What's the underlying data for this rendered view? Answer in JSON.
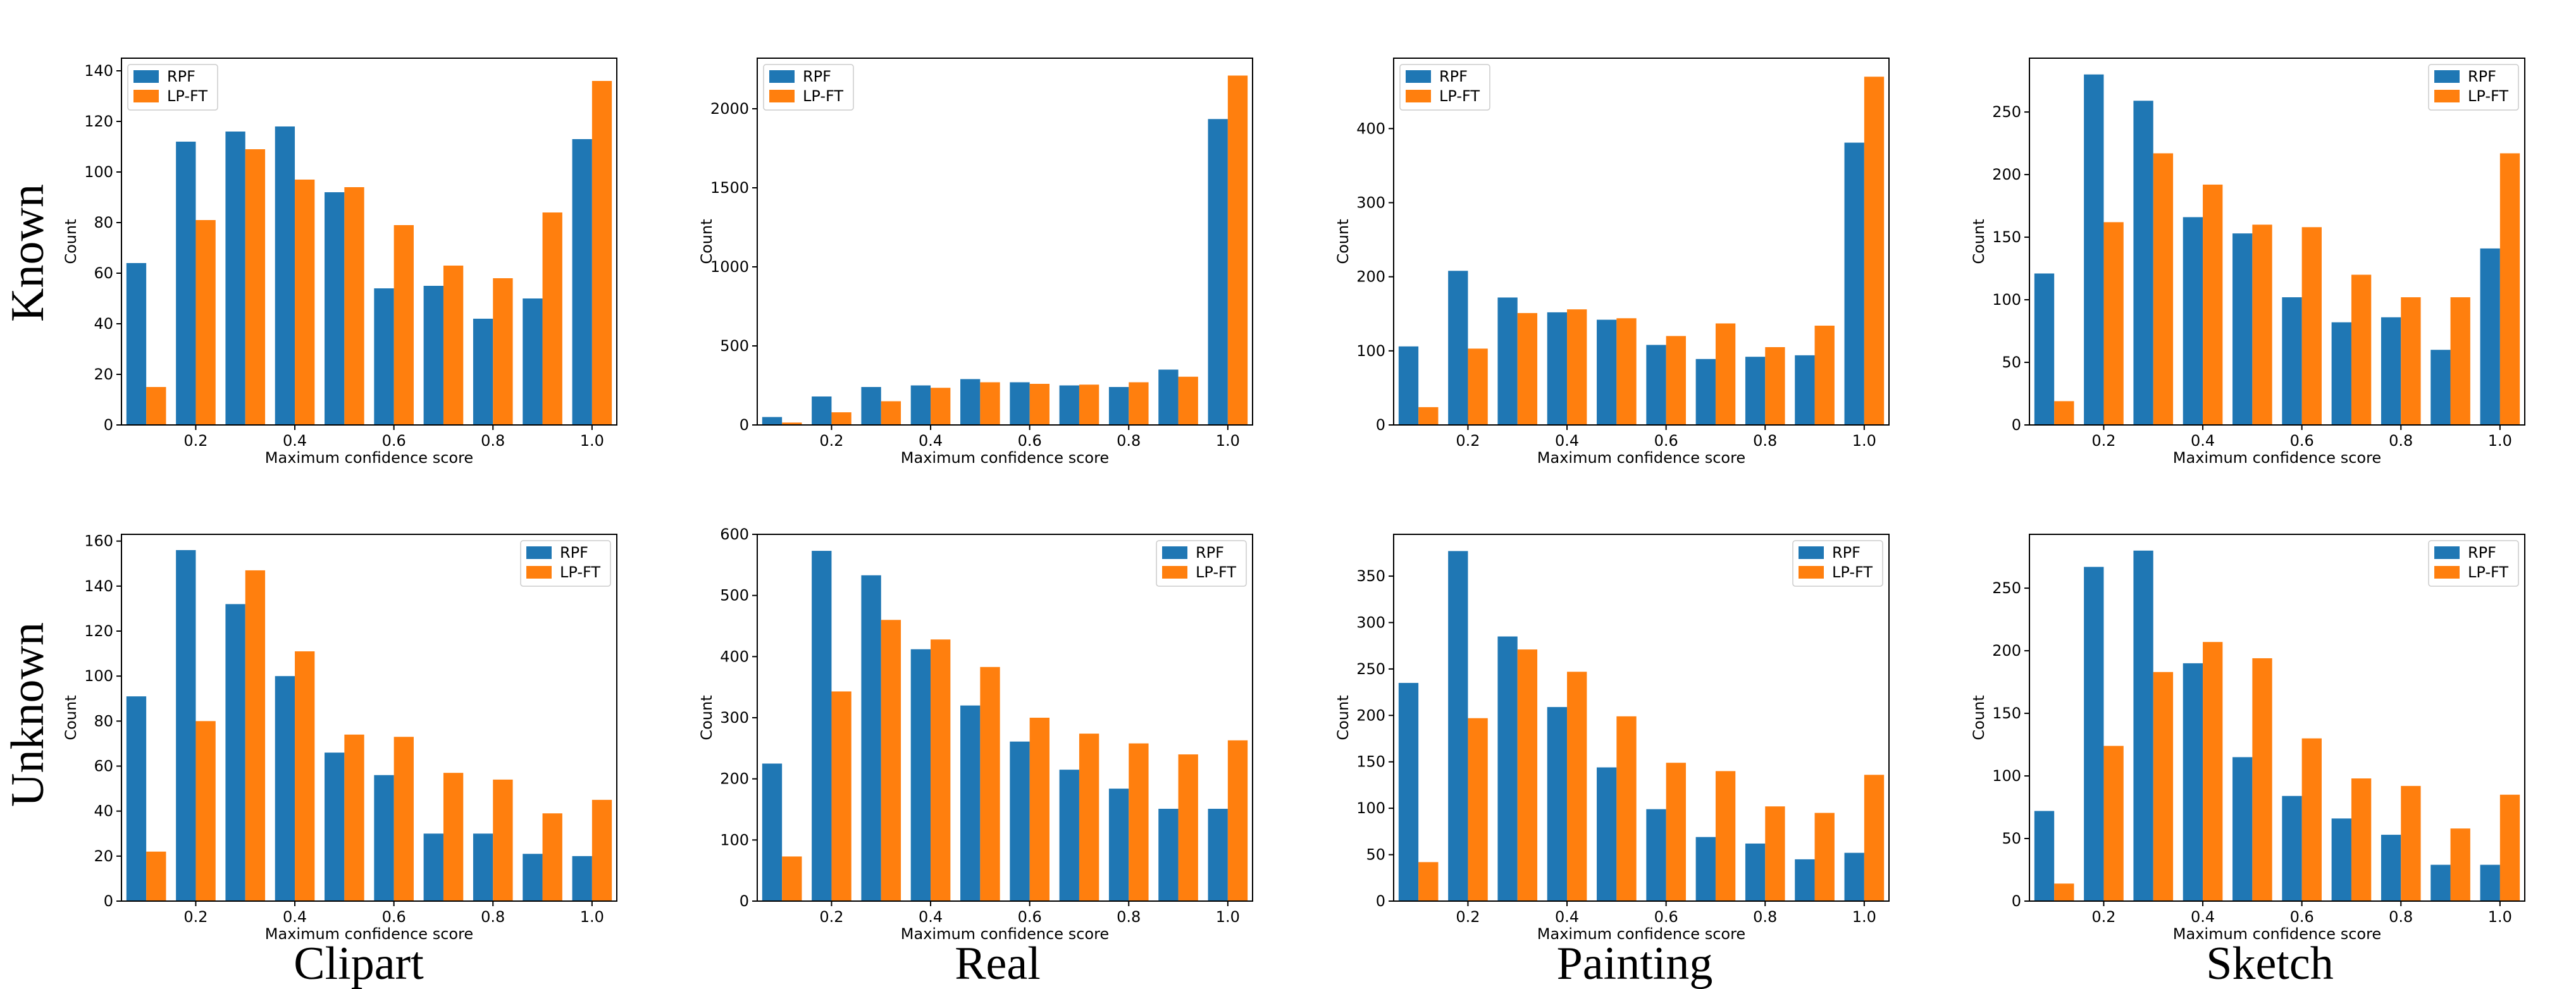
{
  "colors": {
    "RPF": "#1f77b4",
    "LP-FT": "#ff7f0e"
  },
  "row_labels": [
    "Known",
    "Unknown"
  ],
  "column_labels": [
    "Clipart",
    "Real",
    "Painting",
    "Sketch"
  ],
  "chart_data": [
    {
      "type": "bar",
      "panel": "Known / Clipart",
      "x": [
        0.1,
        0.2,
        0.3,
        0.4,
        0.5,
        0.6,
        0.7,
        0.8,
        0.9,
        1.0
      ],
      "series": [
        {
          "name": "RPF",
          "values": [
            64,
            112,
            116,
            118,
            92,
            54,
            55,
            42,
            50,
            113
          ]
        },
        {
          "name": "LP-FT",
          "values": [
            15,
            81,
            109,
            97,
            94,
            79,
            63,
            58,
            84,
            136
          ]
        }
      ],
      "xlabel": "Maximum confidence score",
      "ylabel": "Count",
      "xlim": [
        0.05,
        1.05
      ],
      "ylim": [
        0,
        145
      ],
      "xticks": [
        "0.2",
        "0.4",
        "0.6",
        "0.8",
        "1.0"
      ],
      "yticks": [
        "0",
        "20",
        "40",
        "60",
        "80",
        "100",
        "120",
        "140"
      ],
      "legend": "upper-left"
    },
    {
      "type": "bar",
      "panel": "Known / Real",
      "x": [
        0.1,
        0.2,
        0.3,
        0.4,
        0.5,
        0.6,
        0.7,
        0.8,
        0.9,
        1.0
      ],
      "series": [
        {
          "name": "RPF",
          "values": [
            50,
            180,
            240,
            250,
            290,
            270,
            250,
            240,
            350,
            1935
          ]
        },
        {
          "name": "LP-FT",
          "values": [
            15,
            80,
            150,
            235,
            270,
            260,
            255,
            270,
            305,
            2210
          ]
        }
      ],
      "xlabel": "Maximum confidence score",
      "ylabel": "Count",
      "xlim": [
        0.05,
        1.05
      ],
      "ylim": [
        0,
        2320
      ],
      "xticks": [
        "0.2",
        "0.4",
        "0.6",
        "0.8",
        "1.0"
      ],
      "yticks": [
        "0",
        "500",
        "1000",
        "1500",
        "2000"
      ],
      "legend": "upper-left"
    },
    {
      "type": "bar",
      "panel": "Known / Painting",
      "x": [
        0.1,
        0.2,
        0.3,
        0.4,
        0.5,
        0.6,
        0.7,
        0.8,
        0.9,
        1.0
      ],
      "series": [
        {
          "name": "RPF",
          "values": [
            106,
            208,
            172,
            152,
            142,
            108,
            89,
            92,
            94,
            381
          ]
        },
        {
          "name": "LP-FT",
          "values": [
            24,
            103,
            151,
            156,
            144,
            120,
            137,
            105,
            134,
            470
          ]
        }
      ],
      "xlabel": "Maximum confidence score",
      "ylabel": "Count",
      "xlim": [
        0.05,
        1.05
      ],
      "ylim": [
        0,
        495
      ],
      "xticks": [
        "0.2",
        "0.4",
        "0.6",
        "0.8",
        "1.0"
      ],
      "yticks": [
        "0",
        "100",
        "200",
        "300",
        "400"
      ],
      "legend": "upper-left"
    },
    {
      "type": "bar",
      "panel": "Known / Sketch",
      "x": [
        0.1,
        0.2,
        0.3,
        0.4,
        0.5,
        0.6,
        0.7,
        0.8,
        0.9,
        1.0
      ],
      "series": [
        {
          "name": "RPF",
          "values": [
            121,
            280,
            259,
            166,
            153,
            102,
            82,
            86,
            60,
            141
          ]
        },
        {
          "name": "LP-FT",
          "values": [
            19,
            162,
            217,
            192,
            160,
            158,
            120,
            102,
            102,
            217
          ]
        }
      ],
      "xlabel": "Maximum confidence score",
      "ylabel": "Count",
      "xlim": [
        0.05,
        1.05
      ],
      "ylim": [
        0,
        293
      ],
      "xticks": [
        "0.2",
        "0.4",
        "0.6",
        "0.8",
        "1.0"
      ],
      "yticks": [
        "0",
        "50",
        "100",
        "150",
        "200",
        "250"
      ],
      "legend": "upper-right"
    },
    {
      "type": "bar",
      "panel": "Unknown / Clipart",
      "x": [
        0.1,
        0.2,
        0.3,
        0.4,
        0.5,
        0.6,
        0.7,
        0.8,
        0.9,
        1.0
      ],
      "series": [
        {
          "name": "RPF",
          "values": [
            91,
            156,
            132,
            100,
            66,
            56,
            30,
            30,
            21,
            20
          ]
        },
        {
          "name": "LP-FT",
          "values": [
            22,
            80,
            147,
            111,
            74,
            73,
            57,
            54,
            39,
            45
          ]
        }
      ],
      "xlabel": "Maximum confidence score",
      "ylabel": "Count",
      "xlim": [
        0.05,
        1.05
      ],
      "ylim": [
        0,
        163
      ],
      "xticks": [
        "0.2",
        "0.4",
        "0.6",
        "0.8",
        "1.0"
      ],
      "yticks": [
        "0",
        "20",
        "40",
        "60",
        "80",
        "100",
        "120",
        "140",
        "160"
      ],
      "legend": "upper-right"
    },
    {
      "type": "bar",
      "panel": "Unknown / Real",
      "x": [
        0.1,
        0.2,
        0.3,
        0.4,
        0.5,
        0.6,
        0.7,
        0.8,
        0.9,
        1.0
      ],
      "series": [
        {
          "name": "RPF",
          "values": [
            225,
            573,
            533,
            412,
            320,
            261,
            215,
            184,
            151,
            151
          ]
        },
        {
          "name": "LP-FT",
          "values": [
            73,
            343,
            460,
            428,
            383,
            300,
            274,
            258,
            240,
            263
          ]
        }
      ],
      "xlabel": "Maximum confidence score",
      "ylabel": "Count",
      "xlim": [
        0.05,
        1.05
      ],
      "ylim": [
        0,
        600
      ],
      "xticks": [
        "0.2",
        "0.4",
        "0.6",
        "0.8",
        "1.0"
      ],
      "yticks": [
        "0",
        "100",
        "200",
        "300",
        "400",
        "500",
        "600"
      ],
      "legend": "upper-right"
    },
    {
      "type": "bar",
      "panel": "Unknown / Painting",
      "x": [
        0.1,
        0.2,
        0.3,
        0.4,
        0.5,
        0.6,
        0.7,
        0.8,
        0.9,
        1.0
      ],
      "series": [
        {
          "name": "RPF",
          "values": [
            235,
            377,
            285,
            209,
            144,
            99,
            69,
            62,
            45,
            52
          ]
        },
        {
          "name": "LP-FT",
          "values": [
            42,
            197,
            271,
            247,
            199,
            149,
            140,
            102,
            95,
            136
          ]
        }
      ],
      "xlabel": "Maximum confidence score",
      "ylabel": "Count",
      "xlim": [
        0.05,
        1.05
      ],
      "ylim": [
        0,
        395
      ],
      "xticks": [
        "0.2",
        "0.4",
        "0.6",
        "0.8",
        "1.0"
      ],
      "yticks": [
        "0",
        "50",
        "100",
        "150",
        "200",
        "250",
        "300",
        "350"
      ],
      "legend": "upper-right"
    },
    {
      "type": "bar",
      "panel": "Unknown / Sketch",
      "x": [
        0.1,
        0.2,
        0.3,
        0.4,
        0.5,
        0.6,
        0.7,
        0.8,
        0.9,
        1.0
      ],
      "series": [
        {
          "name": "RPF",
          "values": [
            72,
            267,
            280,
            190,
            115,
            84,
            66,
            53,
            29,
            29
          ]
        },
        {
          "name": "LP-FT",
          "values": [
            14,
            124,
            183,
            207,
            194,
            130,
            98,
            92,
            58,
            85
          ]
        }
      ],
      "xlabel": "Maximum confidence score",
      "ylabel": "Count",
      "xlim": [
        0.05,
        1.05
      ],
      "ylim": [
        0,
        293
      ],
      "xticks": [
        "0.2",
        "0.4",
        "0.6",
        "0.8",
        "1.0"
      ],
      "yticks": [
        "0",
        "50",
        "100",
        "150",
        "200",
        "250"
      ],
      "legend": "upper-right"
    }
  ]
}
